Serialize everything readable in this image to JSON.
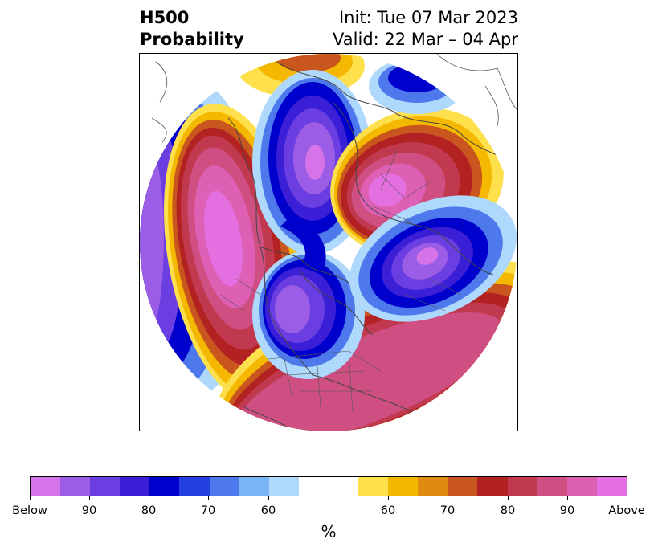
{
  "title": {
    "left_line1": "H500",
    "left_line2": "Probability",
    "right_line1": "Init: Tue 07 Mar 2023",
    "right_line2": "Valid: 22 Mar – 04 Apr"
  },
  "colorbar": {
    "unit": "%",
    "tick_labels": [
      "Below",
      "90",
      "80",
      "70",
      "60",
      "60",
      "70",
      "80",
      "90",
      "Above"
    ],
    "colors": [
      "#d773e8",
      "#9b5ce6",
      "#6a3ee0",
      "#3a1fd6",
      "#0000cc",
      "#2440e0",
      "#4d79ec",
      "#79b4f5",
      "#aed8fc",
      "#ffffff",
      "#fee04c",
      "#f5b800",
      "#e08a12",
      "#c8561e",
      "#b22222",
      "#c0394f",
      "#cf4f83",
      "#de60b4",
      "#e46fe0"
    ]
  },
  "map": {
    "projection": "north-polar-stereographic",
    "field": "500 hPa height tercile probability",
    "features": [
      "coastlines",
      "country borders",
      "state/province borders"
    ]
  }
}
